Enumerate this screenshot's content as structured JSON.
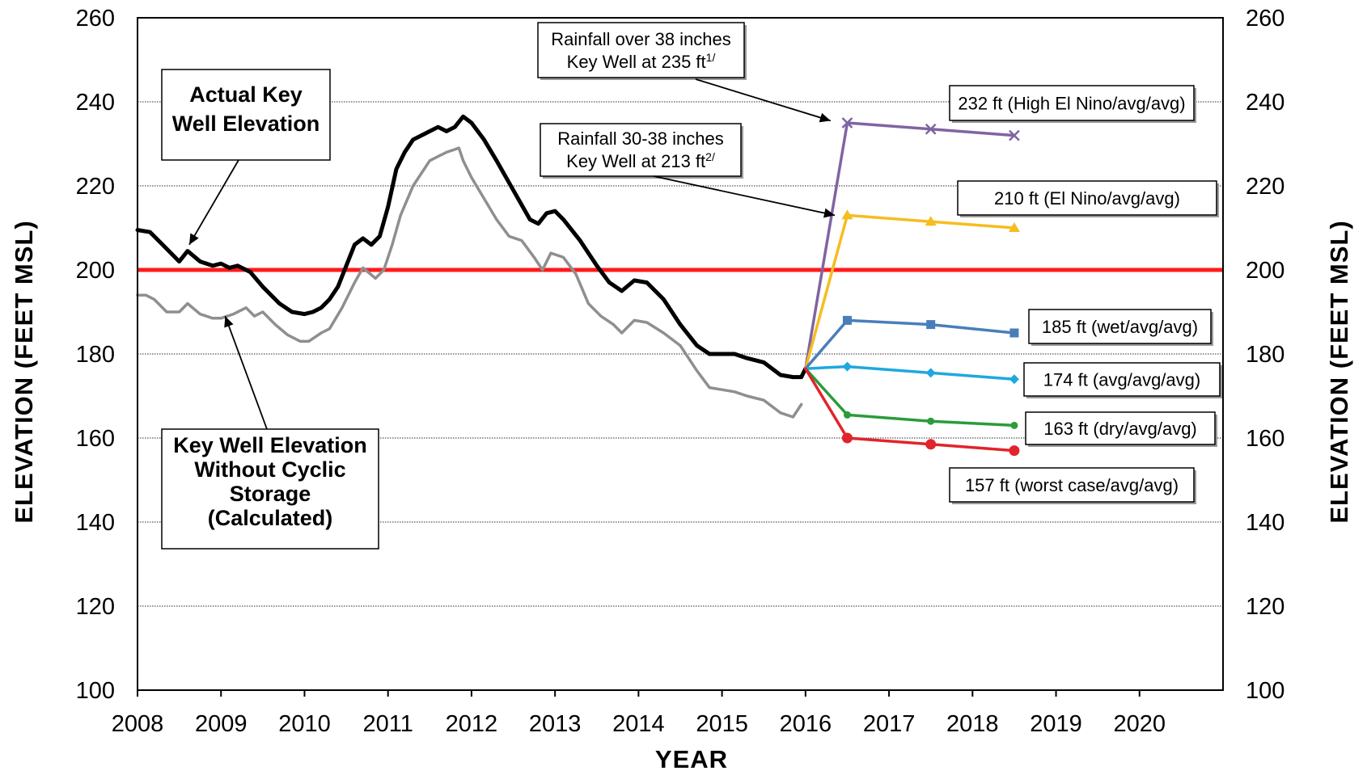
{
  "chart_data": {
    "type": "line",
    "xlabel": "YEAR",
    "ylabel_left": "ELEVATION (FEET MSL)",
    "ylabel_right": "ELEVATION (FEET MSL)",
    "xlim": [
      2008,
      2021
    ],
    "ylim": [
      100,
      260
    ],
    "x_ticks": [
      "2008",
      "2009",
      "2010",
      "2011",
      "2012",
      "2013",
      "2014",
      "2015",
      "2016",
      "2017",
      "2018",
      "2019",
      "2020"
    ],
    "y_ticks": [
      "100",
      "120",
      "140",
      "160",
      "180",
      "200",
      "220",
      "240",
      "260"
    ],
    "gridlines_y": [
      120,
      140,
      160,
      180,
      200,
      220,
      240
    ],
    "reference_line": {
      "y": 200,
      "color": "#ff1a1a"
    },
    "series": [
      {
        "color": "#000000",
        "points": [
          [
            2008.0,
            209.5
          ],
          [
            2008.15,
            209
          ],
          [
            2008.3,
            206
          ],
          [
            2008.5,
            202
          ],
          [
            2008.6,
            204.5
          ],
          [
            2008.75,
            202
          ],
          [
            2008.9,
            201
          ],
          [
            2009.0,
            201.5
          ],
          [
            2009.1,
            200.5
          ],
          [
            2009.2,
            201
          ],
          [
            2009.35,
            199.5
          ],
          [
            2009.5,
            196
          ],
          [
            2009.7,
            192
          ],
          [
            2009.85,
            190
          ],
          [
            2010.0,
            189.5
          ],
          [
            2010.1,
            190
          ],
          [
            2010.2,
            191
          ],
          [
            2010.3,
            193
          ],
          [
            2010.4,
            196
          ],
          [
            2010.5,
            201
          ],
          [
            2010.6,
            206
          ],
          [
            2010.7,
            207.5
          ],
          [
            2010.8,
            206
          ],
          [
            2010.9,
            208
          ],
          [
            2011.0,
            215
          ],
          [
            2011.1,
            224
          ],
          [
            2011.2,
            228
          ],
          [
            2011.3,
            231
          ],
          [
            2011.4,
            232
          ],
          [
            2011.5,
            233
          ],
          [
            2011.6,
            234
          ],
          [
            2011.7,
            233
          ],
          [
            2011.8,
            234
          ],
          [
            2011.9,
            236.5
          ],
          [
            2012.0,
            235
          ],
          [
            2012.15,
            231
          ],
          [
            2012.3,
            226
          ],
          [
            2012.5,
            219
          ],
          [
            2012.7,
            212
          ],
          [
            2012.8,
            211
          ],
          [
            2012.9,
            213.5
          ],
          [
            2013.0,
            214
          ],
          [
            2013.1,
            212
          ],
          [
            2013.3,
            207
          ],
          [
            2013.5,
            201
          ],
          [
            2013.65,
            197
          ],
          [
            2013.8,
            195
          ],
          [
            2013.95,
            197.5
          ],
          [
            2014.1,
            197
          ],
          [
            2014.3,
            193
          ],
          [
            2014.5,
            187
          ],
          [
            2014.7,
            182
          ],
          [
            2014.85,
            180
          ],
          [
            2015.0,
            180
          ],
          [
            2015.15,
            180
          ],
          [
            2015.3,
            179
          ],
          [
            2015.5,
            178
          ],
          [
            2015.7,
            175
          ],
          [
            2015.85,
            174.5
          ],
          [
            2015.95,
            174.5
          ],
          [
            2016.0,
            176.5
          ]
        ]
      },
      {
        "color": "#8f8f8f",
        "points": [
          [
            2008.0,
            194
          ],
          [
            2008.1,
            194
          ],
          [
            2008.2,
            193
          ],
          [
            2008.35,
            190
          ],
          [
            2008.5,
            190
          ],
          [
            2008.6,
            192
          ],
          [
            2008.75,
            189.5
          ],
          [
            2008.9,
            188.5
          ],
          [
            2009.0,
            188.5
          ],
          [
            2009.15,
            189.5
          ],
          [
            2009.3,
            191
          ],
          [
            2009.4,
            189
          ],
          [
            2009.5,
            190
          ],
          [
            2009.65,
            187
          ],
          [
            2009.8,
            184.5
          ],
          [
            2009.95,
            183
          ],
          [
            2010.05,
            183
          ],
          [
            2010.2,
            185
          ],
          [
            2010.3,
            186
          ],
          [
            2010.45,
            191
          ],
          [
            2010.6,
            197
          ],
          [
            2010.7,
            200.5
          ],
          [
            2010.85,
            198
          ],
          [
            2010.95,
            200
          ],
          [
            2011.05,
            206
          ],
          [
            2011.15,
            213
          ],
          [
            2011.3,
            220
          ],
          [
            2011.4,
            223
          ],
          [
            2011.5,
            226
          ],
          [
            2011.6,
            227
          ],
          [
            2011.7,
            228
          ],
          [
            2011.85,
            229
          ],
          [
            2011.9,
            226
          ],
          [
            2012.0,
            222
          ],
          [
            2012.15,
            217
          ],
          [
            2012.3,
            212
          ],
          [
            2012.45,
            208
          ],
          [
            2012.6,
            207
          ],
          [
            2012.75,
            203
          ],
          [
            2012.85,
            200
          ],
          [
            2012.95,
            204
          ],
          [
            2013.1,
            203
          ],
          [
            2013.25,
            199
          ],
          [
            2013.4,
            192
          ],
          [
            2013.55,
            189
          ],
          [
            2013.7,
            187
          ],
          [
            2013.8,
            185
          ],
          [
            2013.95,
            188
          ],
          [
            2014.1,
            187.5
          ],
          [
            2014.3,
            185
          ],
          [
            2014.5,
            182
          ],
          [
            2014.7,
            176
          ],
          [
            2014.85,
            172
          ],
          [
            2015.0,
            171.5
          ],
          [
            2015.15,
            171
          ],
          [
            2015.3,
            170
          ],
          [
            2015.5,
            169
          ],
          [
            2015.7,
            166
          ],
          [
            2015.85,
            165
          ],
          [
            2015.95,
            168
          ]
        ]
      },
      {
        "name": "232 ft (High El Nino/avg/avg)",
        "color": "#8064a2",
        "marker": "x",
        "points": [
          [
            2016.0,
            176.5
          ],
          [
            2016.5,
            235
          ],
          [
            2017.5,
            233.5
          ],
          [
            2018.5,
            232
          ]
        ]
      },
      {
        "name": "210 ft (El Nino/avg/avg)",
        "color": "#f5bd1f",
        "marker": "triangle",
        "points": [
          [
            2016.0,
            176.5
          ],
          [
            2016.5,
            213
          ],
          [
            2017.5,
            211.5
          ],
          [
            2018.5,
            210
          ]
        ]
      },
      {
        "name": "185 ft (wet/avg/avg)",
        "color": "#4a7ebb",
        "marker": "square",
        "points": [
          [
            2016.0,
            176.5
          ],
          [
            2016.5,
            188
          ],
          [
            2017.5,
            187
          ],
          [
            2018.5,
            185
          ]
        ]
      },
      {
        "name": "174 ft (avg/avg/avg)",
        "color": "#1ea8e0",
        "marker": "diamond",
        "points": [
          [
            2016.0,
            176.5
          ],
          [
            2016.5,
            177
          ],
          [
            2017.5,
            175.5
          ],
          [
            2018.5,
            174
          ]
        ]
      },
      {
        "name": "163 ft (dry/avg/avg)",
        "color": "#2a9c3a",
        "marker": "dot",
        "points": [
          [
            2016.0,
            176.5
          ],
          [
            2016.5,
            165.5
          ],
          [
            2017.5,
            164
          ],
          [
            2018.5,
            163
          ]
        ]
      },
      {
        "name": "157 ft (worst case/avg/avg)",
        "color": "#e0242b",
        "marker": "circle",
        "points": [
          [
            2016.0,
            176.5
          ],
          [
            2016.5,
            160
          ],
          [
            2017.5,
            158.5
          ],
          [
            2018.5,
            157
          ]
        ]
      }
    ],
    "annotations": [
      {
        "lines": [
          "Actual Key",
          "Well Elevation"
        ],
        "bold": true,
        "arrow_to": [
          2008.62,
          206
        ]
      },
      {
        "lines": [
          "Key Well Elevation",
          "Without Cyclic",
          "Storage",
          "(Calculated)"
        ],
        "bold": true,
        "arrow_to": [
          2009.05,
          189
        ]
      },
      {
        "lines": [
          "Rainfall over 38 inches",
          "Key Well at 235 ft"
        ],
        "sup": "1/",
        "arrow_to": [
          2016.3,
          235.5
        ]
      },
      {
        "lines": [
          "Rainfall 30-38 inches",
          "Key Well at 213 ft"
        ],
        "sup": "2/",
        "arrow_to": [
          2016.35,
          213
        ]
      }
    ]
  }
}
